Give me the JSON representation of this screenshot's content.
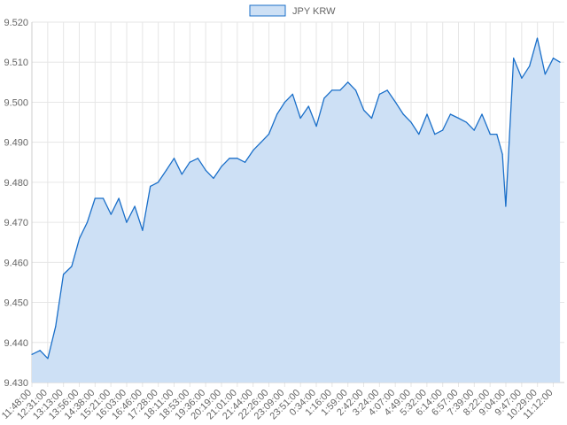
{
  "chart_data": {
    "type": "area",
    "title": "",
    "xlabel": "",
    "ylabel": "",
    "legend": {
      "placement": "top-center",
      "entries": [
        "JPY KRW"
      ]
    },
    "grid": true,
    "ylim": [
      9.43,
      9.52
    ],
    "y_ticks": [
      "9.430",
      "9.440",
      "9.450",
      "9.460",
      "9.470",
      "9.480",
      "9.490",
      "9.500",
      "9.510",
      "9.520"
    ],
    "x_tick_labels": [
      "11:48:00",
      "12:31:00",
      "13:13:00",
      "13:56:00",
      "14:38:00",
      "15:21:00",
      "16:03:00",
      "16:46:00",
      "17:28:00",
      "18:11:00",
      "18:53:00",
      "19:36:00",
      "20:19:00",
      "21:01:00",
      "21:44:00",
      "22:26:00",
      "23:09:00",
      "23:51:00",
      "0:34:00",
      "1:16:00",
      "1:59:00",
      "2:42:00",
      "3:24:00",
      "4:07:00",
      "4:49:00",
      "5:32:00",
      "6:14:00",
      "6:57:00",
      "7:39:00",
      "8:22:00",
      "9:04:00",
      "9:47:00",
      "10:29:00",
      "11:12:00"
    ],
    "series": [
      {
        "name": "JPY KRW",
        "color": "#1a6fc9",
        "fill": "#cde0f5",
        "x": [
          "11:48:00",
          "12:10:00",
          "12:31:00",
          "12:52:00",
          "13:13:00",
          "13:35:00",
          "13:56:00",
          "14:17:00",
          "14:38:00",
          "15:00:00",
          "15:21:00",
          "15:42:00",
          "16:03:00",
          "16:25:00",
          "16:46:00",
          "17:07:00",
          "17:28:00",
          "17:50:00",
          "18:11:00",
          "18:32:00",
          "18:53:00",
          "19:15:00",
          "19:36:00",
          "19:57:00",
          "20:19:00",
          "20:40:00",
          "21:01:00",
          "21:22:00",
          "21:44:00",
          "22:05:00",
          "22:26:00",
          "22:48:00",
          "23:09:00",
          "23:30:00",
          "23:51:00",
          "0:13:00",
          "0:34:00",
          "0:55:00",
          "1:16:00",
          "1:38:00",
          "1:59:00",
          "2:20:00",
          "2:42:00",
          "3:03:00",
          "3:24:00",
          "3:45:00",
          "4:07:00",
          "4:28:00",
          "4:49:00",
          "5:10:00",
          "5:32:00",
          "5:53:00",
          "6:14:00",
          "6:35:00",
          "6:57:00",
          "7:18:00",
          "7:39:00",
          "8:00:00",
          "8:22:00",
          "8:40:00",
          "8:55:00",
          "9:04:00",
          "9:25:00",
          "9:47:00",
          "10:08:00",
          "10:29:00",
          "10:50:00",
          "11:12:00",
          "11:30:00"
        ],
        "values": [
          9.437,
          9.438,
          9.436,
          9.444,
          9.457,
          9.459,
          9.466,
          9.47,
          9.476,
          9.476,
          9.472,
          9.476,
          9.47,
          9.474,
          9.468,
          9.479,
          9.48,
          9.483,
          9.486,
          9.482,
          9.485,
          9.486,
          9.483,
          9.481,
          9.484,
          9.486,
          9.486,
          9.485,
          9.488,
          9.49,
          9.492,
          9.497,
          9.5,
          9.502,
          9.496,
          9.499,
          9.494,
          9.501,
          9.503,
          9.503,
          9.505,
          9.503,
          9.498,
          9.496,
          9.502,
          9.503,
          9.5,
          9.497,
          9.495,
          9.492,
          9.497,
          9.492,
          9.493,
          9.497,
          9.496,
          9.495,
          9.493,
          9.497,
          9.492,
          9.492,
          9.487,
          9.474,
          9.511,
          9.506,
          9.509,
          9.516,
          9.507,
          9.511,
          9.51
        ]
      }
    ]
  }
}
